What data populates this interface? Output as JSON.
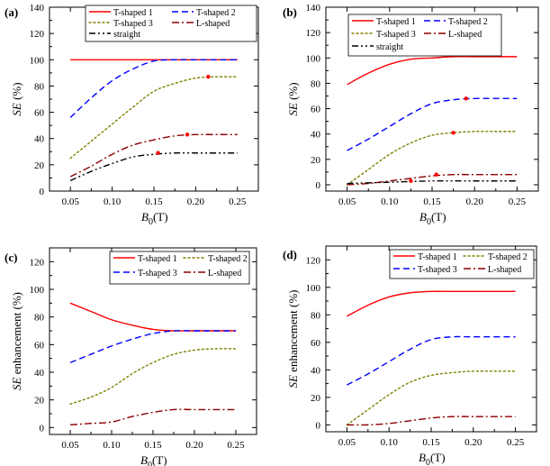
{
  "chart_data": [
    {
      "type": "line",
      "panel": "(a)",
      "xlabel": "B0(T)",
      "xlabel_main": "B",
      "xlabel_sub": "0",
      "xlabel_unit": "(T)",
      "ylabel": "SE (%)",
      "ylabel_main": "SE",
      "ylabel_unit": " (%)",
      "xlim": [
        0.025,
        0.275
      ],
      "ylim": [
        0,
        140
      ],
      "xticks": [
        0.05,
        0.1,
        0.15,
        0.2,
        0.25
      ],
      "xtick_labels": [
        "0.05",
        "0.10",
        "0.15",
        "0.20",
        "0.25"
      ],
      "yticks": [
        0,
        20,
        40,
        60,
        80,
        100,
        120,
        140
      ],
      "ytick_labels": [
        "0",
        "20",
        "40",
        "60",
        "80",
        "100",
        "120",
        "140"
      ],
      "legend": {
        "placement": "top-right",
        "columns": 2
      },
      "series": [
        {
          "name": "T-shaped 1",
          "color": "#ff0000",
          "style": "solid",
          "x": [
            0.05,
            0.1,
            0.15,
            0.2,
            0.25
          ],
          "y": [
            100,
            100,
            100,
            100,
            100
          ]
        },
        {
          "name": "T-shaped 2",
          "color": "#0000ff",
          "style": "dashed",
          "x": [
            0.05,
            0.075,
            0.1,
            0.125,
            0.15,
            0.175,
            0.2,
            0.25
          ],
          "y": [
            56,
            71,
            84,
            93,
            99,
            100,
            100,
            100
          ]
        },
        {
          "name": "T-shaped 3",
          "color": "#808000",
          "style": "dotted",
          "x": [
            0.05,
            0.075,
            0.1,
            0.125,
            0.15,
            0.175,
            0.2,
            0.225,
            0.25
          ],
          "y": [
            25,
            38,
            51,
            64,
            76,
            82,
            86,
            87,
            87
          ]
        },
        {
          "name": "L-shaped",
          "color": "#8b0000",
          "style": "dashdot",
          "x": [
            0.05,
            0.075,
            0.1,
            0.125,
            0.15,
            0.175,
            0.2,
            0.25
          ],
          "y": [
            11,
            19,
            28,
            35,
            39,
            42,
            43,
            43
          ]
        },
        {
          "name": "straight",
          "color": "#000000",
          "style": "dashdotdot",
          "x": [
            0.05,
            0.075,
            0.1,
            0.125,
            0.15,
            0.175,
            0.2,
            0.25
          ],
          "y": [
            8,
            15,
            21,
            26,
            28,
            29,
            29,
            29
          ]
        }
      ],
      "markers": [
        {
          "x": 0.215,
          "y": 87,
          "color": "#ff0000"
        },
        {
          "x": 0.19,
          "y": 43,
          "color": "#ff0000"
        },
        {
          "x": 0.155,
          "y": 29,
          "color": "#ff0000"
        }
      ]
    },
    {
      "type": "line",
      "panel": "(b)",
      "xlabel": "B0(T)",
      "xlabel_main": "B",
      "xlabel_sub": "0",
      "xlabel_unit": "(T)",
      "ylabel": "SE (%)",
      "ylabel_main": "SE",
      "ylabel_unit": " (%)",
      "xlim": [
        0.025,
        0.275
      ],
      "ylim": [
        -5,
        140
      ],
      "xticks": [
        0.05,
        0.1,
        0.15,
        0.2,
        0.25
      ],
      "xtick_labels": [
        "0.05",
        "0.10",
        "0.15",
        "0.20",
        "0.25"
      ],
      "yticks": [
        0,
        20,
        40,
        60,
        80,
        100,
        120,
        140
      ],
      "ytick_labels": [
        "0",
        "20",
        "40",
        "60",
        "80",
        "100",
        "120",
        "140"
      ],
      "legend": {
        "placement": "top",
        "columns": 2
      },
      "series": [
        {
          "name": "T-shaped 1",
          "color": "#ff0000",
          "style": "solid",
          "x": [
            0.05,
            0.075,
            0.1,
            0.125,
            0.15,
            0.175,
            0.2,
            0.25
          ],
          "y": [
            79,
            88,
            95,
            99,
            100,
            101,
            101,
            101
          ]
        },
        {
          "name": "T-shaped 2",
          "color": "#0000ff",
          "style": "dashed",
          "x": [
            0.05,
            0.075,
            0.1,
            0.125,
            0.15,
            0.175,
            0.2,
            0.25
          ],
          "y": [
            27,
            36,
            46,
            56,
            64,
            67,
            68,
            68
          ]
        },
        {
          "name": "T-shaped 3",
          "color": "#808000",
          "style": "dotted",
          "x": [
            0.05,
            0.075,
            0.1,
            0.125,
            0.15,
            0.175,
            0.2,
            0.225,
            0.25
          ],
          "y": [
            0,
            12,
            24,
            33,
            39,
            41,
            42,
            42,
            42
          ]
        },
        {
          "name": "L-shaped",
          "color": "#8b0000",
          "style": "dashdot",
          "x": [
            0.05,
            0.075,
            0.1,
            0.125,
            0.15,
            0.175,
            0.2,
            0.25
          ],
          "y": [
            0,
            1,
            3,
            5,
            7,
            8,
            8,
            8
          ]
        },
        {
          "name": "straight",
          "color": "#000000",
          "style": "dashdotdot",
          "x": [
            0.05,
            0.1,
            0.15,
            0.2,
            0.25
          ],
          "y": [
            1,
            2,
            3,
            3,
            3
          ]
        }
      ],
      "markers": [
        {
          "x": 0.19,
          "y": 68,
          "color": "#ff0000"
        },
        {
          "x": 0.175,
          "y": 41,
          "color": "#ff0000"
        },
        {
          "x": 0.155,
          "y": 8,
          "color": "#ff0000"
        },
        {
          "x": 0.125,
          "y": 3,
          "color": "#ff0000"
        }
      ]
    },
    {
      "type": "line",
      "panel": "(c)",
      "xlabel": "B0(T)",
      "xlabel_main": "B",
      "xlabel_sub": "0",
      "xlabel_unit": "(T)",
      "ylabel": "SE enhancement (%)",
      "ylabel_main": "SE",
      "ylabel_unit": " enhancement (%)",
      "xlim": [
        0.025,
        0.275
      ],
      "ylim": [
        -5,
        130
      ],
      "xticks": [
        0.05,
        0.1,
        0.15,
        0.2,
        0.25
      ],
      "xtick_labels": [
        "0.05",
        "0.10",
        "0.15",
        "0.20",
        "0.25"
      ],
      "yticks": [
        0,
        20,
        40,
        60,
        80,
        100,
        120
      ],
      "ytick_labels": [
        "0",
        "20",
        "40",
        "60",
        "80",
        "100",
        "120"
      ],
      "legend": {
        "placement": "top-right",
        "columns": 2
      },
      "series": [
        {
          "name": "T-shaped 1",
          "color": "#ff0000",
          "style": "solid",
          "x": [
            0.05,
            0.075,
            0.1,
            0.125,
            0.15,
            0.175,
            0.2,
            0.25
          ],
          "y": [
            90,
            84,
            78,
            74,
            71,
            70,
            70,
            70
          ]
        },
        {
          "name": "T-shaped 2",
          "color": "#808000",
          "style": "dotted",
          "x": [
            0.05,
            0.075,
            0.1,
            0.125,
            0.15,
            0.175,
            0.2,
            0.225,
            0.25
          ],
          "y": [
            17,
            22,
            29,
            39,
            47,
            53,
            56,
            57,
            57
          ]
        },
        {
          "name": "T-shaped 3",
          "color": "#0000ff",
          "style": "dashed",
          "x": [
            0.05,
            0.075,
            0.1,
            0.125,
            0.15,
            0.175,
            0.2,
            0.25
          ],
          "y": [
            47,
            53,
            59,
            64,
            68,
            70,
            70,
            70
          ]
        },
        {
          "name": "L-shaped",
          "color": "#8b0000",
          "style": "dashdot",
          "x": [
            0.05,
            0.075,
            0.1,
            0.125,
            0.15,
            0.175,
            0.2,
            0.25
          ],
          "y": [
            2,
            3,
            4,
            8,
            11,
            13,
            13,
            13
          ]
        }
      ]
    },
    {
      "type": "line",
      "panel": "(d)",
      "xlabel": "B0(T)",
      "xlabel_main": "B",
      "xlabel_sub": "0",
      "xlabel_unit": "(T)",
      "ylabel": "SE enhancement (%)",
      "ylabel_main": "SE",
      "ylabel_unit": " enhancement (%)",
      "xlim": [
        0.025,
        0.275
      ],
      "ylim": [
        -5,
        130
      ],
      "xticks": [
        0.05,
        0.1,
        0.15,
        0.2,
        0.25
      ],
      "xtick_labels": [
        "0.05",
        "0.10",
        "0.15",
        "0.20",
        "0.25"
      ],
      "yticks": [
        0,
        20,
        40,
        60,
        80,
        100,
        120
      ],
      "ytick_labels": [
        "0",
        "20",
        "40",
        "60",
        "80",
        "100",
        "120"
      ],
      "legend": {
        "placement": "top",
        "columns": 2
      },
      "series": [
        {
          "name": "T-shaped 1",
          "color": "#ff0000",
          "style": "solid",
          "x": [
            0.05,
            0.075,
            0.1,
            0.125,
            0.15,
            0.175,
            0.2,
            0.25
          ],
          "y": [
            79,
            87,
            93,
            96,
            97,
            97,
            97,
            97
          ]
        },
        {
          "name": "T-shaped 2",
          "color": "#808000",
          "style": "dotted",
          "x": [
            0.05,
            0.075,
            0.1,
            0.125,
            0.15,
            0.175,
            0.2,
            0.225,
            0.25
          ],
          "y": [
            0,
            11,
            22,
            31,
            36,
            38,
            39,
            39,
            39
          ]
        },
        {
          "name": "T-shaped 3",
          "color": "#0000ff",
          "style": "dashed",
          "x": [
            0.05,
            0.075,
            0.1,
            0.125,
            0.15,
            0.175,
            0.2,
            0.25
          ],
          "y": [
            29,
            37,
            46,
            55,
            62,
            64,
            64,
            64
          ]
        },
        {
          "name": "L-shaped",
          "color": "#8b0000",
          "style": "dashdot",
          "x": [
            0.05,
            0.075,
            0.1,
            0.125,
            0.15,
            0.175,
            0.2,
            0.25
          ],
          "y": [
            0,
            0,
            1,
            3,
            5,
            6,
            6,
            6
          ]
        }
      ]
    }
  ]
}
